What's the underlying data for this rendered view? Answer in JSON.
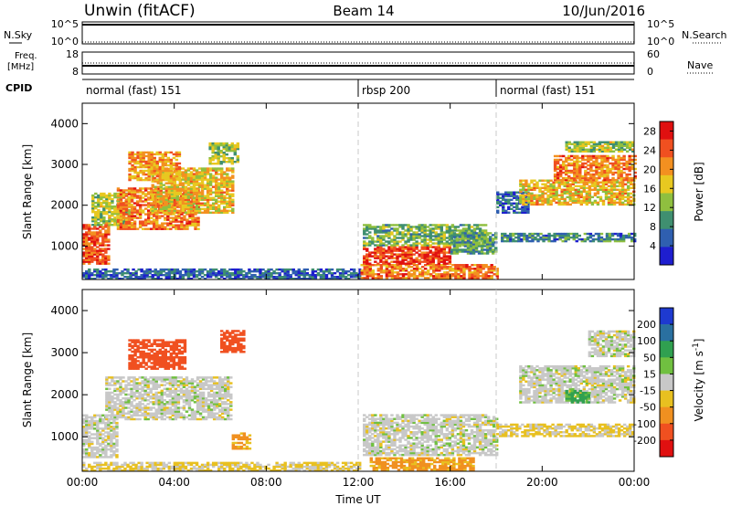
{
  "header": {
    "station": "Unwin (fitACF)",
    "beam": "Beam 14",
    "date": "10/Jun/2016"
  },
  "nsky_panel": {
    "left_label": "N.Sky",
    "right_label": "N.Search",
    "left_ticks": [
      "10^5",
      "10^0"
    ],
    "right_ticks": [
      "10^5",
      "10^0"
    ]
  },
  "freq_panel": {
    "left_label_1": "Freq.",
    "left_label_2": "[MHz]",
    "right_label": "Nave",
    "left_ticks": [
      "18",
      "8"
    ],
    "right_ticks": [
      "60",
      "0"
    ]
  },
  "cpid_panel": {
    "label": "CPID",
    "segments": [
      {
        "name": "normal (fast) 151",
        "start": 0,
        "end": 12
      },
      {
        "name": "rbsp 200",
        "start": 12,
        "end": 18
      },
      {
        "name": "normal (fast) 151",
        "start": 18,
        "end": 24
      }
    ]
  },
  "chart_data": [
    {
      "type": "heatmap",
      "title": "",
      "xlabel": "Time UT",
      "ylabel": "Slant Range [km]",
      "xlim": [
        0,
        24
      ],
      "ylim": [
        180,
        4500
      ],
      "x_ticks": [
        "00:00",
        "04:00",
        "08:00",
        "12:00",
        "16:00",
        "20:00",
        "00:00"
      ],
      "y_ticks": [
        1000,
        2000,
        3000,
        4000
      ],
      "colorbar": {
        "label": "Power [dB]",
        "ticks": [
          4,
          8,
          12,
          16,
          20,
          24,
          28
        ],
        "range": [
          0,
          30
        ],
        "colors": [
          "#1e1ecf",
          "#2f5fb0",
          "#3f8f70",
          "#8fbf3f",
          "#e8c820",
          "#f39020",
          "#f05020",
          "#e01010"
        ]
      },
      "regions": [
        {
          "t0": 0.0,
          "t1": 1.2,
          "r0": 550,
          "r1": 1500,
          "level": 24
        },
        {
          "t0": 0.4,
          "t1": 2.2,
          "r0": 1500,
          "r1": 2300,
          "level": 14
        },
        {
          "t0": 1.5,
          "t1": 5.0,
          "r0": 1400,
          "r1": 2400,
          "level": 22
        },
        {
          "t0": 3.0,
          "t1": 6.6,
          "r0": 1800,
          "r1": 2900,
          "level": 18
        },
        {
          "t0": 2.0,
          "t1": 4.2,
          "r0": 2600,
          "r1": 3300,
          "level": 20
        },
        {
          "t0": 5.5,
          "t1": 6.8,
          "r0": 3000,
          "r1": 3500,
          "level": 14
        },
        {
          "t0": 0.0,
          "t1": 12.0,
          "r0": 180,
          "r1": 450,
          "level": 6
        },
        {
          "t0": 12.1,
          "t1": 18.0,
          "r0": 200,
          "r1": 520,
          "level": 22
        },
        {
          "t0": 12.2,
          "t1": 16.0,
          "r0": 550,
          "r1": 1000,
          "level": 26
        },
        {
          "t0": 12.2,
          "t1": 17.5,
          "r0": 1000,
          "r1": 1500,
          "level": 12
        },
        {
          "t0": 16.0,
          "t1": 18.0,
          "r0": 800,
          "r1": 1300,
          "level": 10
        },
        {
          "t0": 18.0,
          "t1": 19.4,
          "r0": 1800,
          "r1": 2300,
          "level": 6
        },
        {
          "t0": 18.2,
          "t1": 24.0,
          "r0": 1100,
          "r1": 1300,
          "level": 8
        },
        {
          "t0": 19.0,
          "t1": 24.0,
          "r0": 2000,
          "r1": 2600,
          "level": 18
        },
        {
          "t0": 20.5,
          "t1": 24.0,
          "r0": 2600,
          "r1": 3200,
          "level": 22
        },
        {
          "t0": 21.0,
          "t1": 24.0,
          "r0": 3300,
          "r1": 3550,
          "level": 14
        }
      ]
    },
    {
      "type": "heatmap",
      "title": "",
      "xlabel": "Time UT",
      "ylabel": "Slant Range [km]",
      "xlim": [
        0,
        24
      ],
      "ylim": [
        180,
        4500
      ],
      "x_ticks": [
        "00:00",
        "04:00",
        "08:00",
        "12:00",
        "16:00",
        "20:00",
        "00:00"
      ],
      "y_ticks": [
        1000,
        2000,
        3000,
        4000
      ],
      "colorbar": {
        "label": "Velocity [m s^-1]",
        "ticks": [
          200,
          100,
          50,
          15,
          -15,
          -50,
          -100,
          -200
        ],
        "colors": [
          "#1e3ad0",
          "#2a70a0",
          "#30a050",
          "#70c040",
          "#c8c8c8",
          "#e8c020",
          "#f09020",
          "#f05020",
          "#e01010"
        ]
      },
      "regions": [
        {
          "t0": 0.0,
          "t1": 1.5,
          "r0": 500,
          "r1": 1500,
          "level": 0
        },
        {
          "t0": 1.0,
          "t1": 6.5,
          "r0": 1400,
          "r1": 2400,
          "level": 0
        },
        {
          "t0": 2.0,
          "t1": 4.5,
          "r0": 2600,
          "r1": 3300,
          "level": -150
        },
        {
          "t0": 6.0,
          "t1": 7.0,
          "r0": 3000,
          "r1": 3500,
          "level": -150
        },
        {
          "t0": 6.5,
          "t1": 7.3,
          "r0": 700,
          "r1": 1100,
          "level": -60
        },
        {
          "t0": 0.0,
          "t1": 12.0,
          "r0": 180,
          "r1": 400,
          "level": -20
        },
        {
          "t0": 12.2,
          "t1": 18.0,
          "r0": 550,
          "r1": 1500,
          "level": 0
        },
        {
          "t0": 12.5,
          "t1": 17.0,
          "r0": 200,
          "r1": 500,
          "level": -60
        },
        {
          "t0": 18.0,
          "t1": 24.0,
          "r0": 1000,
          "r1": 1300,
          "level": -20
        },
        {
          "t0": 19.0,
          "t1": 24.0,
          "r0": 1800,
          "r1": 2700,
          "level": 0
        },
        {
          "t0": 21.0,
          "t1": 22.0,
          "r0": 1800,
          "r1": 2100,
          "level": 60
        },
        {
          "t0": 22.0,
          "t1": 24.0,
          "r0": 2900,
          "r1": 3500,
          "level": 0
        }
      ]
    }
  ],
  "colors": {
    "axis": "#000000",
    "boundary_line": "#c8c8c8"
  }
}
